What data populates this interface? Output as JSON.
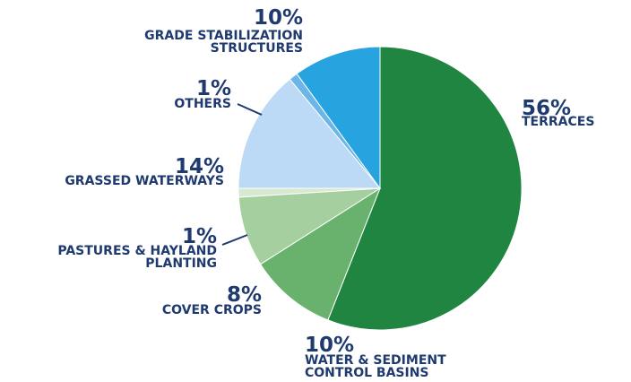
{
  "chart_data": {
    "type": "pie",
    "slices": [
      {
        "label": "TERRACES",
        "value": 56,
        "percent_text": "56%",
        "color": "#1f8540"
      },
      {
        "label": "WATER & SEDIMENT CONTROL BASINS",
        "value": 10,
        "percent_text": "10%",
        "color": "#69b26d"
      },
      {
        "label": "COVER CROPS",
        "value": 8,
        "percent_text": "8%",
        "color": "#a6cf9f"
      },
      {
        "label": "PASTURES & HAYLAND PLANTING",
        "value": 1,
        "percent_text": "1%",
        "color": "#d7e9d1"
      },
      {
        "label": "GRASSED WATERWAYS",
        "value": 14,
        "percent_text": "14%",
        "color": "#bcdaf5"
      },
      {
        "label": "OTHERS",
        "value": 1,
        "percent_text": "1%",
        "color": "#6bb6e6"
      },
      {
        "label": "GRADE STABILIZATION STRUCTURES",
        "value": 10,
        "percent_text": "10%",
        "color": "#27a3e0"
      }
    ],
    "label_lines": {
      "TERRACES": [
        "TERRACES"
      ],
      "WATER & SEDIMENT CONTROL BASINS": [
        "WATER & SEDIMENT",
        "CONTROL BASINS"
      ],
      "COVER CROPS": [
        "COVER CROPS"
      ],
      "PASTURES & HAYLAND PLANTING": [
        "PASTURES & HAYLAND",
        "PLANTING"
      ],
      "GRASSED WATERWAYS": [
        "GRASSED WATERWAYS"
      ],
      "OTHERS": [
        "OTHERS"
      ],
      "GRADE STABILIZATION STRUCTURES": [
        "GRADE STABILIZATION",
        "STRUCTURES"
      ]
    },
    "label_color": "#1e3a6e"
  }
}
